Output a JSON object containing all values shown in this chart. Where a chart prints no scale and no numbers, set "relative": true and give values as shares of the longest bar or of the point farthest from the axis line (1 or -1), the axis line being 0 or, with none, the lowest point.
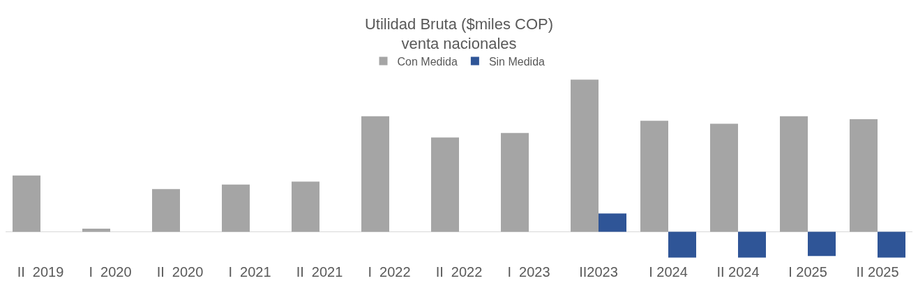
{
  "chart_data": {
    "type": "bar",
    "title": "Utilidad Bruta ($miles COP)\nventa nacionales",
    "relative": true,
    "categories": [
      "II  2019",
      "I  2020",
      "II  2020",
      "I  2021",
      "II  2021",
      "I  2022",
      "II  2022",
      "I  2023",
      "II2023",
      "I 2024",
      "II 2024",
      "I 2025",
      "II 2025"
    ],
    "series": [
      {
        "name": "Con Medida",
        "color": "#a5a5a5",
        "values": [
          0.37,
          0.02,
          0.28,
          0.31,
          0.33,
          0.76,
          0.62,
          0.65,
          1,
          0.73,
          0.71,
          0.76,
          0.74
        ]
      },
      {
        "name": "Sin Medida",
        "color": "#2f5597",
        "values": [
          null,
          null,
          null,
          null,
          null,
          null,
          null,
          null,
          0.12,
          -0.17,
          -0.17,
          -0.16,
          -0.17
        ]
      }
    ],
    "legend": "top",
    "grid": false
  }
}
